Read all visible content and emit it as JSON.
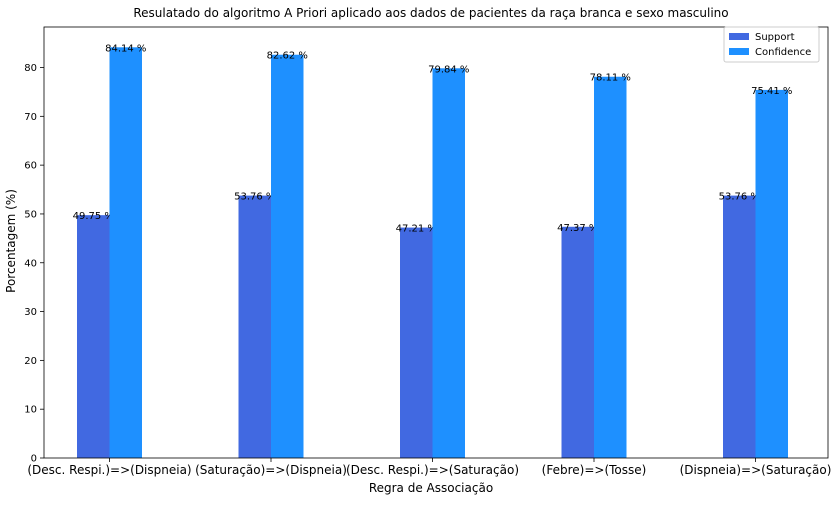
{
  "chart_data": {
    "type": "bar",
    "title": "Resulatado do algoritmo A Priori aplicado aos dados de pacientes da raça branca e sexo masculino",
    "xlabel": "Regra de Associação",
    "ylabel": "Porcentagem (%)",
    "categories": [
      "(Desc. Respi.)=>(Dispneia)",
      "(Saturação)=>(Dispneia)",
      "(Desc. Respi.)=>(Saturação)",
      "(Febre)=>(Tosse)",
      "(Dispneia)=>(Saturação)"
    ],
    "series": [
      {
        "name": "Support",
        "color": "#4169e1",
        "values": [
          49.75,
          53.76,
          47.21,
          47.37,
          53.76
        ],
        "labels": [
          "49.75 %",
          "53.76 %",
          "47.21 %",
          "47.37 %",
          "53.76 %"
        ]
      },
      {
        "name": "Confidence",
        "color": "#1e90ff",
        "values": [
          84.14,
          82.62,
          79.84,
          78.11,
          75.41
        ],
        "labels": [
          "84.14 %",
          "82.62 %",
          "79.84 %",
          "78.11 %",
          "75.41 %"
        ]
      }
    ],
    "ylim": [
      0,
      88.3
    ],
    "yticks": [
      0,
      10,
      20,
      30,
      40,
      50,
      60,
      70,
      80
    ],
    "grid": false,
    "legend": "top-right"
  }
}
